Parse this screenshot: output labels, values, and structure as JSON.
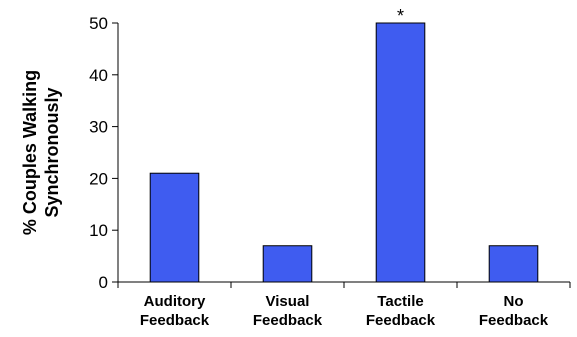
{
  "chart_data": {
    "type": "bar",
    "categories": [
      [
        "Auditory",
        "Feedback"
      ],
      [
        "Visual",
        "Feedback"
      ],
      [
        "Tactile",
        "Feedback"
      ],
      [
        "No",
        "Feedback"
      ]
    ],
    "values": [
      21,
      7,
      50,
      7
    ],
    "ylabel": [
      "% Couples Walking",
      "Synchronously"
    ],
    "xlabel": "",
    "title": "",
    "ylim": [
      0,
      50
    ],
    "yticks": [
      0,
      10,
      20,
      30,
      40,
      50
    ],
    "annotations": [
      {
        "category_index": 2,
        "text": "*"
      }
    ],
    "bar_color": "#3f5cf0",
    "bar_stroke": "#000000",
    "grid": false,
    "legend": "none"
  }
}
